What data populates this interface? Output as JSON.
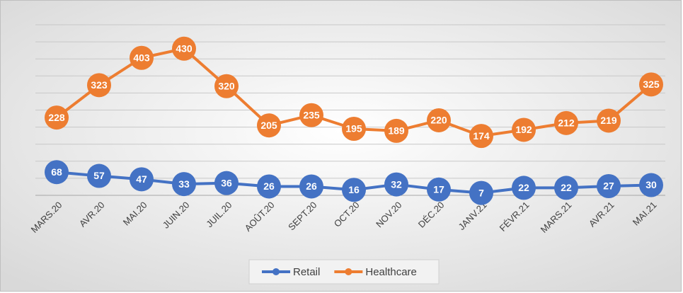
{
  "chart_data": {
    "type": "line",
    "categories": [
      "MARS.20",
      "AVR.20",
      "MAI.20",
      "JUIN.20",
      "JUIL.20",
      "AOÛT.20",
      "SEPT.20",
      "OCT.20",
      "NOV.20",
      "DÉC.20",
      "JANV.21",
      "FÉVR.21",
      "MARS.21",
      "AVR.21",
      "MAI.21"
    ],
    "series": [
      {
        "name": "Retail",
        "color": "#4472c4",
        "values": [
          68,
          57,
          47,
          33,
          36,
          26,
          26,
          16,
          32,
          17,
          7,
          22,
          22,
          27,
          30
        ]
      },
      {
        "name": "Healthcare",
        "color": "#ed7d31",
        "values": [
          228,
          323,
          403,
          430,
          320,
          205,
          235,
          195,
          189,
          220,
          174,
          192,
          212,
          219,
          325
        ]
      }
    ],
    "ylim": [
      0,
      500
    ],
    "yticks": [
      0,
      50,
      100,
      150,
      200,
      250,
      300,
      350,
      400,
      450,
      500
    ],
    "grid": true,
    "legend": "bottom"
  }
}
